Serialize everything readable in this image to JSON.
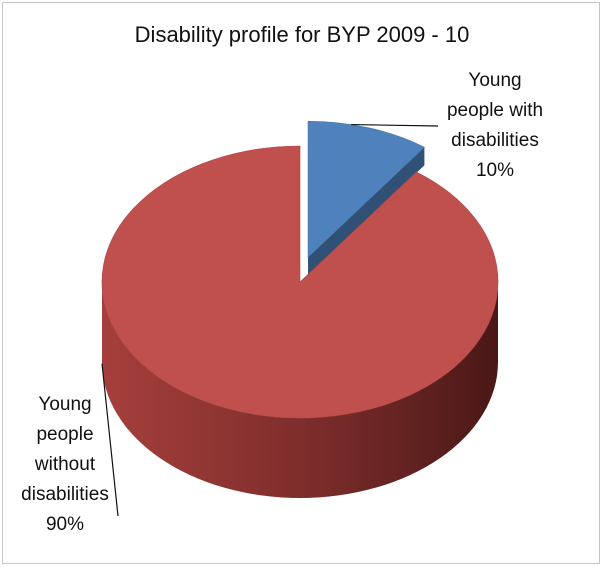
{
  "chart_data": {
    "type": "pie",
    "style": "3d-exploded",
    "title": "Disability profile for BYP 2009 - 10",
    "slices": [
      {
        "label_lines": [
          "Young",
          "people with",
          "disabilities"
        ],
        "percent_label": "10%",
        "value": 10,
        "color": "#4f81bd"
      },
      {
        "label_lines": [
          "Young",
          "people",
          "without",
          "disabilities"
        ],
        "percent_label": "90%",
        "value": 90,
        "color": "#c0504d"
      }
    ]
  }
}
